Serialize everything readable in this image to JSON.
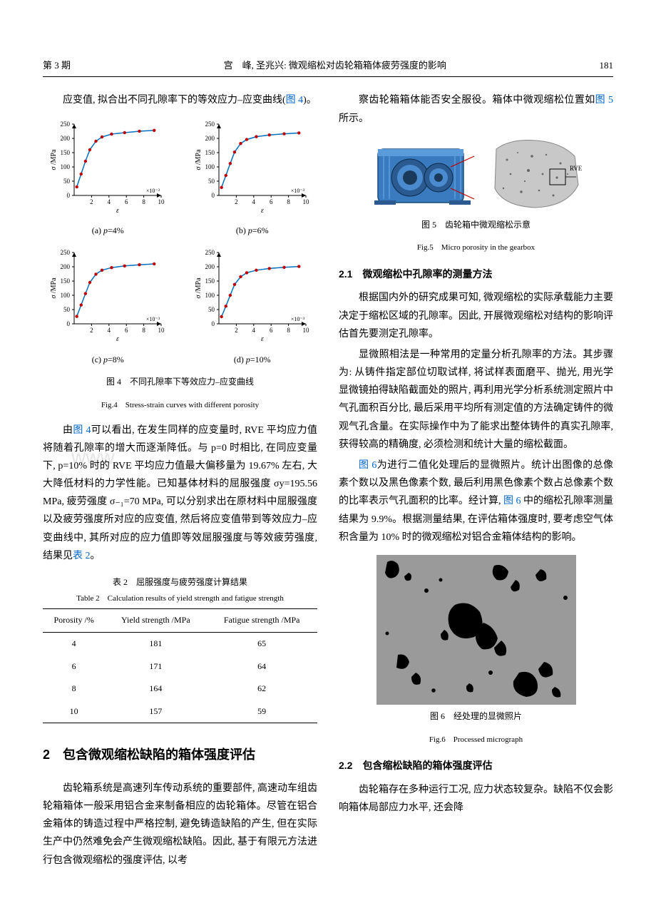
{
  "header": {
    "issue": "第 3 期",
    "running": "宫　峰, 圣兆兴: 微观缩松对齿轮箱箱体疲劳强度的影响",
    "page": "181"
  },
  "leftCol": {
    "p1": "应变值, 拟合出不同孔隙率下的等效应力–应变曲线(图 4)。",
    "p1_link": "图 4",
    "fig4": {
      "caption_cn": "图 4　不同孔隙率下等效应力–应变曲线",
      "caption_en": "Fig.4　Stress-strain curves with different porosity",
      "ylabel": "σ /MPa",
      "xlabel": "ε",
      "xscale": "×10⁻³",
      "ylim": [
        0,
        250
      ],
      "ytick_step": 50,
      "xlim": [
        0,
        10
      ],
      "xticks": [
        2,
        4,
        6,
        8,
        10
      ],
      "curve_color": "#0070c0",
      "marker_color": "#c00000",
      "marker": "circle",
      "axis_color": "#000000",
      "background": "#ffffff",
      "panels": [
        {
          "label": "(a) p=4%",
          "x": [
            0.3,
            0.8,
            1.3,
            1.8,
            2.5,
            3.2,
            4.3,
            5.8,
            7.5,
            9.2
          ],
          "y": [
            30,
            75,
            120,
            160,
            190,
            205,
            215,
            220,
            225,
            228
          ]
        },
        {
          "label": "(b) p=6%",
          "x": [
            0.3,
            0.8,
            1.3,
            1.8,
            2.5,
            3.2,
            4.3,
            5.8,
            7.5,
            9.2
          ],
          "y": [
            28,
            70,
            112,
            152,
            182,
            196,
            206,
            212,
            216,
            219
          ]
        },
        {
          "label": "(c) p=8%",
          "x": [
            0.3,
            0.8,
            1.3,
            1.8,
            2.5,
            3.2,
            4.3,
            5.8,
            7.5,
            9.2
          ],
          "y": [
            26,
            66,
            106,
            145,
            174,
            188,
            197,
            203,
            207,
            210
          ]
        },
        {
          "label": "(d) p=10%",
          "x": [
            0.3,
            0.8,
            1.3,
            1.8,
            2.5,
            3.2,
            4.3,
            5.8,
            7.5,
            9.2
          ],
          "y": [
            25,
            62,
            100,
            138,
            165,
            179,
            188,
            194,
            198,
            201
          ]
        }
      ]
    },
    "p2_a": "由",
    "p2_link": "图 4",
    "p2_b": "可以看出, 在发生同样的应变量时, RVE 平均应力值将随着孔隙率的增大而逐渐降低。与 p=0 时相比, 在同应变量下, p=10% 时的 RVE 平均应力值最大偏移量为 19.67% 左右, 大大降低材料的力学性能。已知基体材料的屈服强度 σy=195.56 MPa, 疲劳强度 σ₋₁=70 MPa, 可以分别求出在原材料中屈服强度以及疲劳强度所对应的应变值, 然后将应变值带到等效应力–应变曲线中, 其所对应的应力值即等效屈服强度与等效疲劳强度, 结果见",
    "p2_link2": "表 2",
    "p2_c": "。",
    "table2": {
      "caption_cn": "表 2　屈服强度与疲劳强度计算结果",
      "caption_en": "Table 2　Calculation results of yield strength and fatigue strength",
      "columns": [
        "Porosity /%",
        "Yield strength /MPa",
        "Fatigue strength /MPa"
      ],
      "rows": [
        [
          "4",
          "181",
          "65"
        ],
        [
          "6",
          "171",
          "64"
        ],
        [
          "8",
          "164",
          "62"
        ],
        [
          "10",
          "157",
          "59"
        ]
      ]
    },
    "sec2_title": "2　包含微观缩松缺陷的箱体强度评估",
    "p3": "齿轮箱系统是高速列车传动系统的重要部件, 高速动车组齿轮箱箱体一般采用铝合金来制备相应的齿轮箱体。尽管在铝合金箱体的铸造过程中严格控制, 避免铸造缺陷的产生, 但在实际生产中仍然难免会产生微观缩松缺陷。因此, 基于有限元方法进行包含微观缩松的强度评估, 以考"
  },
  "rightCol": {
    "p1_a": "察齿轮箱箱体能否安全服役。箱体中微观缩松位置如",
    "p1_link": "图 5",
    "p1_b": " 所示。",
    "fig5": {
      "caption_cn": "图 5　齿轮箱中微观缩松示意",
      "caption_en": "Fig.5　Micro porosity in the gearbox",
      "gearbox_color": "#3a7bbf",
      "rve_fill": "#c8c8c8",
      "rve_label": "RVE",
      "callout_color": "#c00000"
    },
    "subsec21": "2.1　微观缩松中孔隙率的测量方法",
    "p2": "根据国内外的研究成果可知, 微观缩松的实际承载能力主要决定于缩松区域的孔隙率。因此, 开展微观缩松对结构的影响评估首先要测定孔隙率。",
    "p3": "显微照相法是一种常用的定量分析孔隙率的方法。其步骤为: 从铸件指定部位切取试样, 将试样表面磨平、抛光, 用光学显微镜拍得缺陷截面处的照片, 再利用光学分析系统测定照片中气孔面积百分比, 最后采用平均所有测定值的方法确定铸件的微观气孔含量。在实际操作中为了能求出整体铸件的真实孔隙率, 获得较高的精确度, 必须检测和统计大量的缩松截面。",
    "p4_link": "图 6",
    "p4_a": "为进行二值化处理后的显微照片。统计出图像的总像素个数以及黑色像素个数, 最后利用黑色像素个数占总像素个数的比率表示气孔面积的比率。经计算, ",
    "p4_link2": "图 6",
    "p4_b": " 中的缩松孔隙率测量结果为 9.9%。根据测量结果, 在评估箱体强度时, 要考虑空气体积含量为 10% 时的微观缩松对铝合金箱体结构的影响。",
    "fig6": {
      "caption_cn": "图 6　经处理的显微照片",
      "caption_en": "Fig.6　Processed micrograph",
      "bg": "#9a9a9a",
      "blob_color": "#000000"
    },
    "subsec22": "2.2　包含缩松缺陷的箱体强度评估",
    "p5": "齿轮箱存在多种运行工况, 应力状态较复杂。缺陷不仅会影响箱体局部应力水平, 还会降"
  },
  "watermark": {
    "text1": "www.",
    "text2": ".cn"
  }
}
